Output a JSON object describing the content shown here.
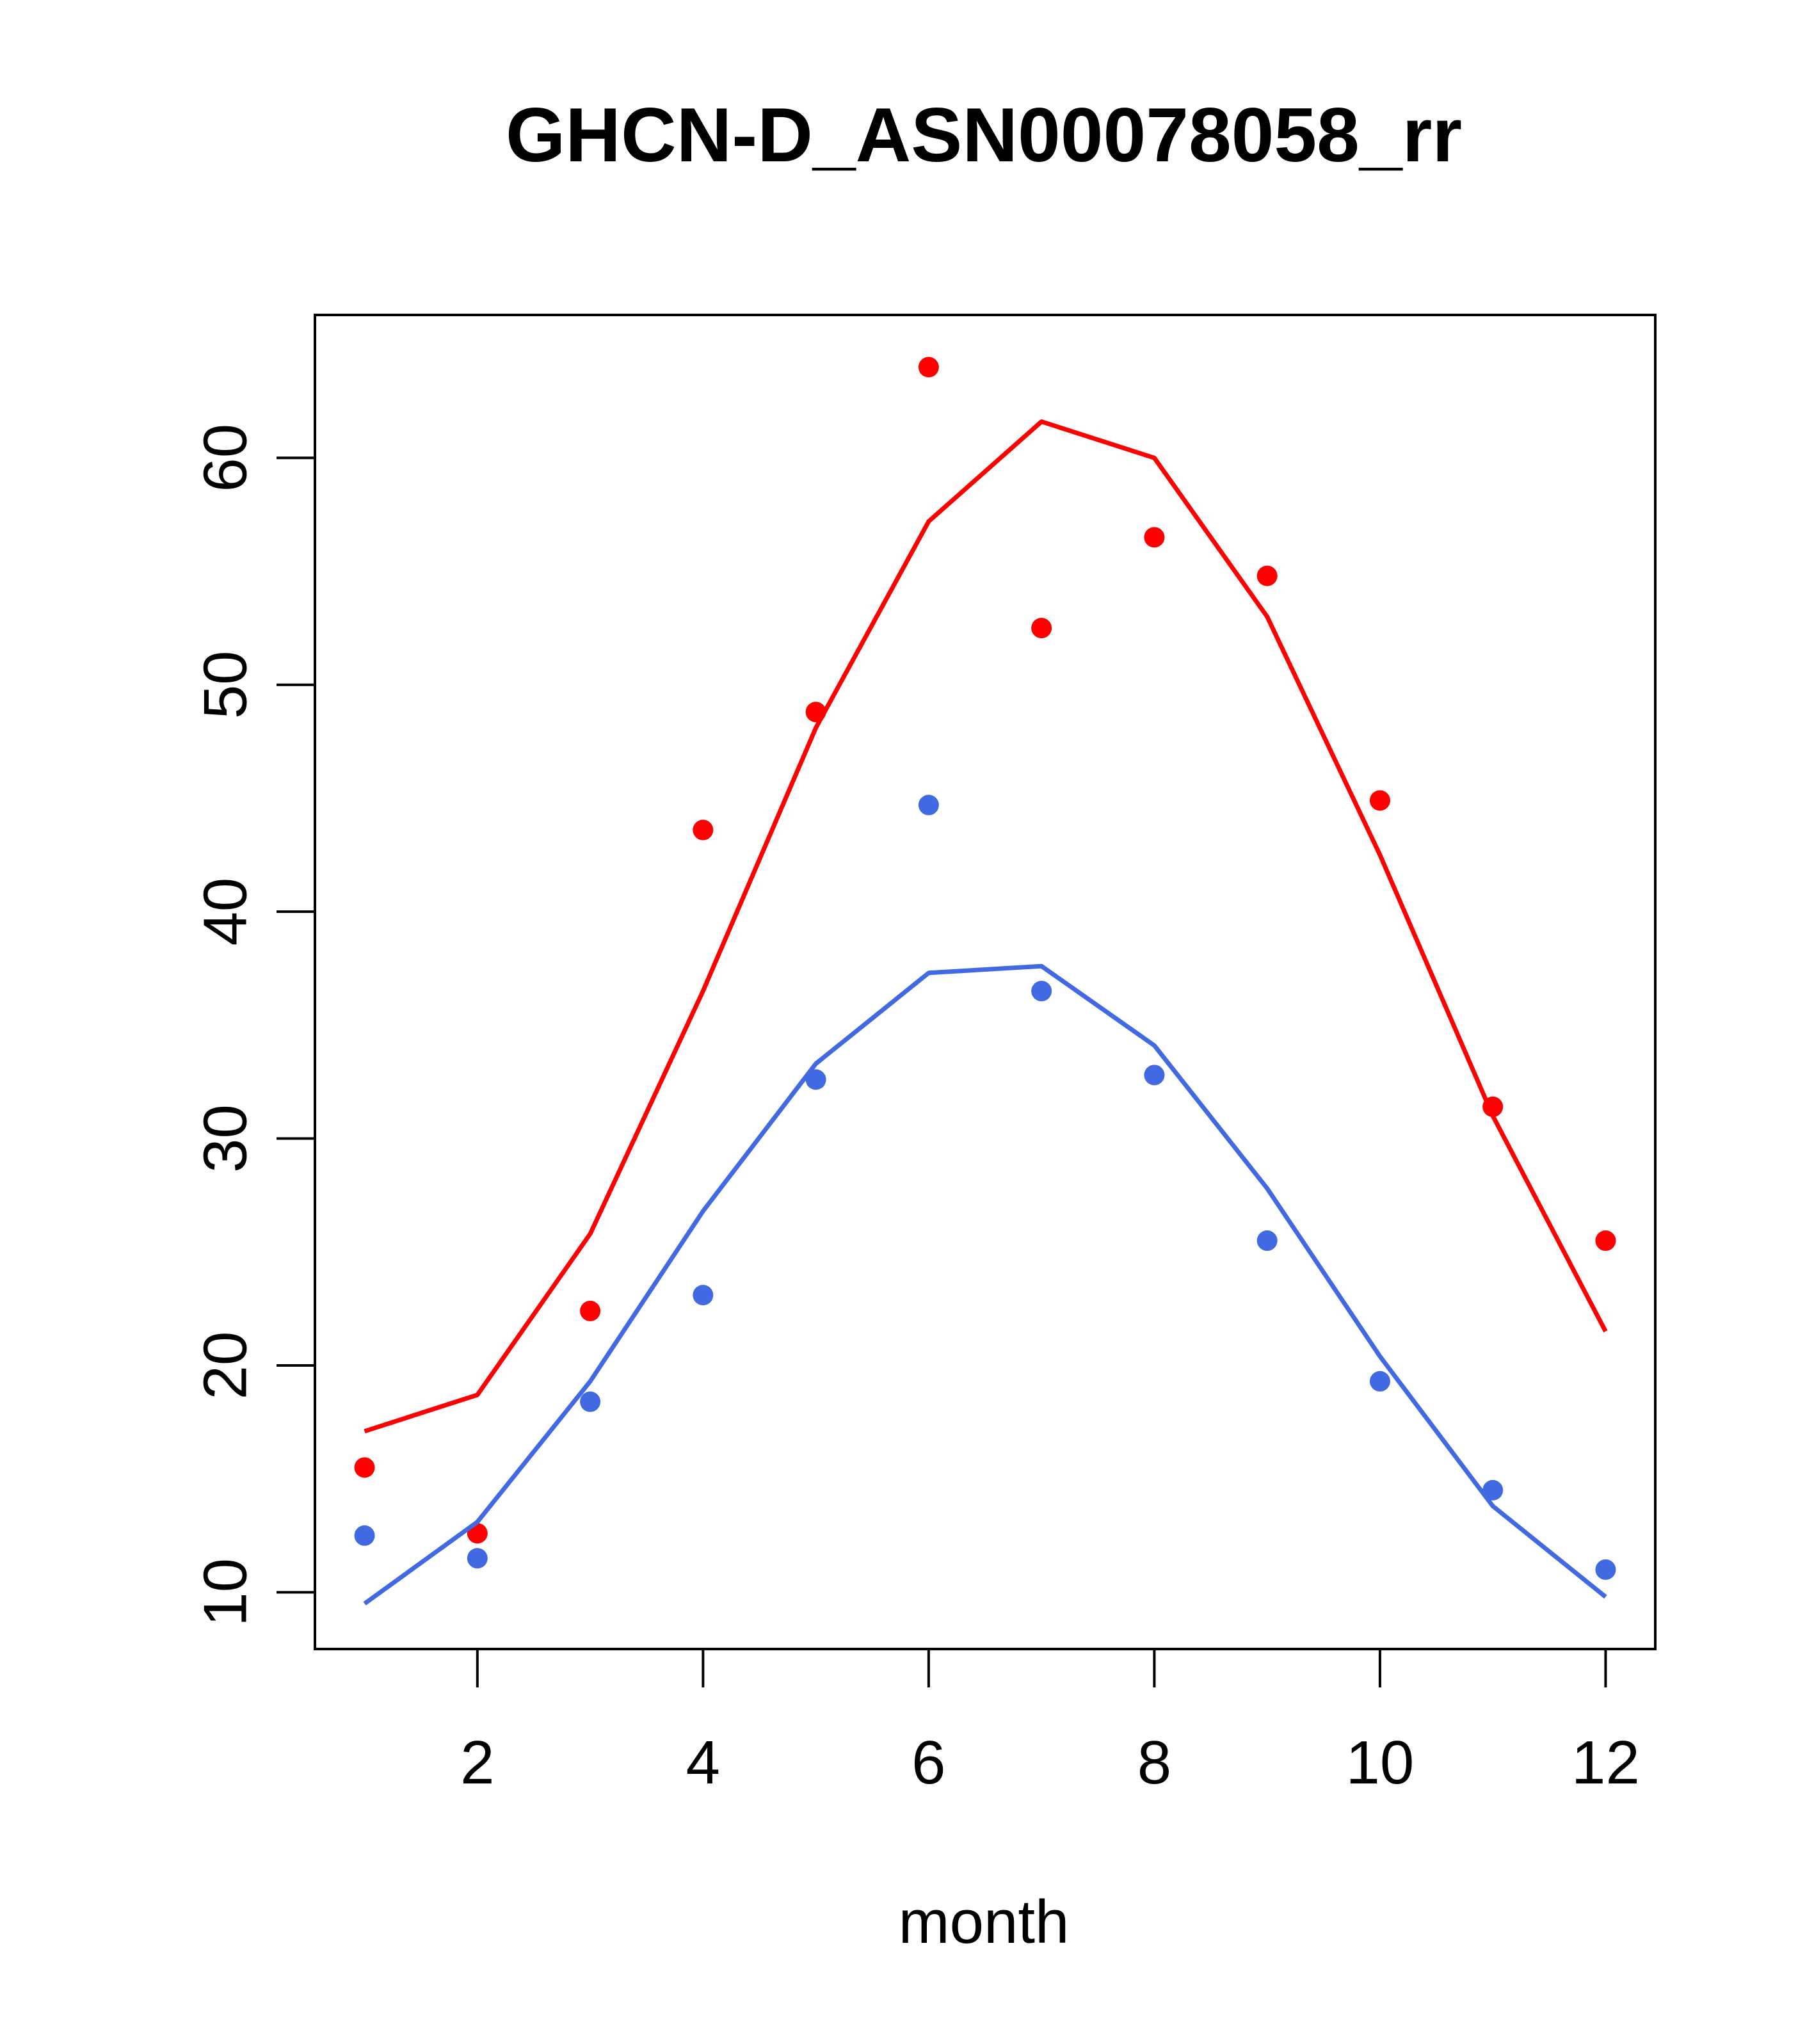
{
  "chart_data": {
    "type": "line",
    "title": "GHCN-D_ASN00078058_rr",
    "xlabel": "month",
    "ylabel": "",
    "xlim": [
      0.56,
      12.44
    ],
    "ylim": [
      7.5,
      66.3
    ],
    "x_ticks": [
      2,
      4,
      6,
      8,
      10,
      12
    ],
    "y_ticks": [
      10,
      20,
      30,
      40,
      50,
      60
    ],
    "grid": false,
    "legend": "none",
    "x": [
      1,
      2,
      3,
      4,
      5,
      6,
      7,
      8,
      9,
      10,
      11,
      12
    ],
    "series": [
      {
        "color": "#ff0000",
        "points": [
          15.5,
          12.6,
          22.4,
          43.6,
          48.8,
          64.0,
          52.5,
          56.5,
          54.8,
          44.9,
          31.4,
          25.5
        ],
        "line": [
          17.1,
          18.7,
          25.8,
          36.5,
          48.1,
          57.2,
          61.6,
          60.0,
          53.0,
          42.5,
          31.0,
          21.5
        ]
      },
      {
        "color": "#4169e1",
        "points": [
          12.5,
          11.5,
          18.4,
          23.1,
          32.6,
          44.7,
          36.5,
          32.8,
          25.5,
          19.3,
          14.5,
          11.0
        ],
        "line": [
          9.5,
          13.1,
          19.3,
          26.8,
          33.3,
          37.3,
          37.6,
          34.1,
          27.8,
          20.4,
          13.8,
          9.8
        ]
      }
    ]
  }
}
